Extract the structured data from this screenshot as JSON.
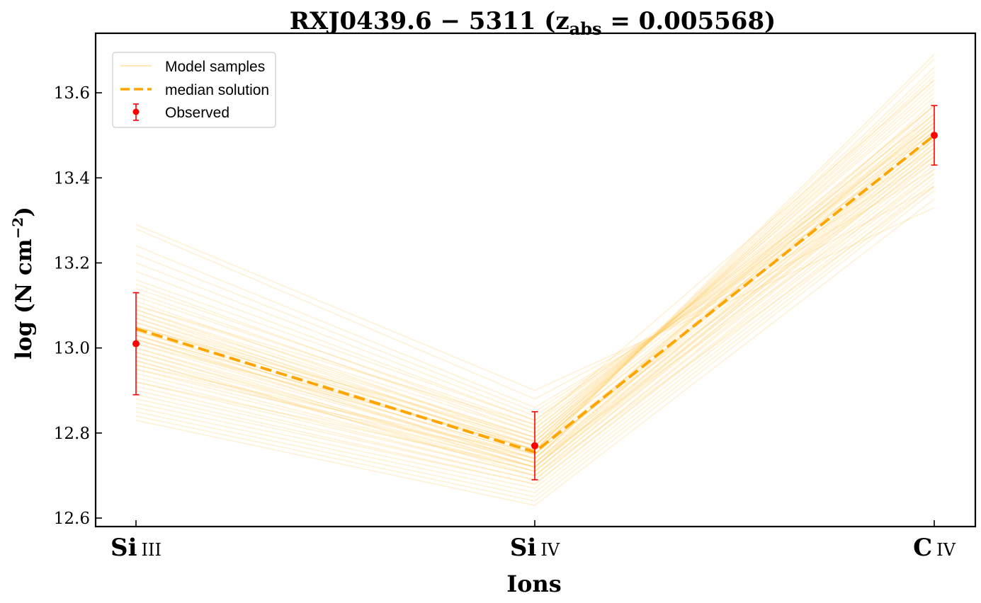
{
  "chart_data": {
    "type": "line",
    "title": {
      "main": "RXJ0439.6 − 5311 (z",
      "sub": "abs",
      "tail": " = 0.005568)"
    },
    "xlabel": "Ions",
    "ylabel": {
      "main": "log (N cm",
      "sup": "−2",
      "tail": ")"
    },
    "categories": [
      {
        "main": "Si",
        "sc": "III"
      },
      {
        "main": "Si",
        "sc": "IV"
      },
      {
        "main": "C",
        "sc": "IV"
      }
    ],
    "ylim": [
      12.58,
      13.74
    ],
    "yticks": [
      12.6,
      12.8,
      13.0,
      13.2,
      13.4,
      13.6
    ],
    "ytick_labels": [
      "12.6",
      "12.8",
      "13.0",
      "13.2",
      "13.4",
      "13.6"
    ],
    "legend": {
      "placement": "top-left",
      "entries": [
        "Model samples",
        "median solution",
        "Observed"
      ]
    },
    "series": [
      {
        "name": "median solution",
        "style": "dashed",
        "color": "#ffa500",
        "values": [
          13.045,
          12.755,
          13.5
        ]
      },
      {
        "name": "Observed",
        "style": "errorbar",
        "color": "#ff0000",
        "values": [
          13.01,
          12.77,
          13.5
        ],
        "errors": [
          0.12,
          0.08,
          0.07
        ]
      },
      {
        "name": "Model samples",
        "style": "thin",
        "color": "#ffcc66",
        "samples": [
          [
            13.29,
            12.9,
            13.33
          ],
          [
            13.28,
            12.88,
            13.38
          ],
          [
            13.24,
            12.86,
            13.42
          ],
          [
            13.22,
            12.85,
            13.45
          ],
          [
            13.2,
            12.84,
            13.47
          ],
          [
            13.16,
            12.83,
            13.49
          ],
          [
            13.14,
            12.82,
            13.51
          ],
          [
            13.12,
            12.81,
            13.53
          ],
          [
            13.1,
            12.8,
            13.55
          ],
          [
            13.09,
            12.79,
            13.57
          ],
          [
            13.08,
            12.79,
            13.59
          ],
          [
            13.07,
            12.78,
            13.6
          ],
          [
            13.06,
            12.78,
            13.61
          ],
          [
            13.05,
            12.77,
            13.62
          ],
          [
            13.05,
            12.77,
            13.63
          ],
          [
            13.04,
            12.76,
            13.64
          ],
          [
            13.03,
            12.76,
            13.65
          ],
          [
            13.03,
            12.76,
            13.66
          ],
          [
            13.02,
            12.75,
            13.68
          ],
          [
            13.02,
            12.75,
            13.69
          ],
          [
            13.01,
            12.74,
            13.58
          ],
          [
            13.0,
            12.74,
            13.56
          ],
          [
            12.99,
            12.73,
            13.54
          ],
          [
            12.98,
            12.73,
            13.52
          ],
          [
            12.97,
            12.72,
            13.5
          ],
          [
            12.96,
            12.72,
            13.49
          ],
          [
            12.95,
            12.71,
            13.48
          ],
          [
            12.94,
            12.71,
            13.47
          ],
          [
            12.93,
            12.7,
            13.46
          ],
          [
            12.92,
            12.7,
            13.45
          ],
          [
            12.91,
            12.69,
            13.44
          ],
          [
            12.9,
            12.69,
            13.43
          ],
          [
            12.89,
            12.68,
            13.42
          ],
          [
            12.88,
            12.68,
            13.41
          ],
          [
            12.87,
            12.67,
            13.4
          ],
          [
            12.86,
            12.66,
            13.39
          ],
          [
            12.85,
            12.65,
            13.38
          ],
          [
            12.84,
            12.64,
            13.37
          ],
          [
            12.83,
            12.63,
            13.35
          ],
          [
            13.11,
            12.78,
            13.53
          ],
          [
            13.09,
            12.77,
            13.52
          ],
          [
            13.07,
            12.76,
            13.51
          ],
          [
            13.06,
            12.75,
            13.5
          ],
          [
            13.04,
            12.74,
            13.49
          ],
          [
            13.02,
            12.73,
            13.48
          ],
          [
            13.0,
            12.72,
            13.47
          ],
          [
            12.99,
            12.72,
            13.46
          ],
          [
            12.97,
            12.71,
            13.45
          ],
          [
            13.13,
            12.8,
            13.57
          ],
          [
            13.15,
            12.81,
            13.55
          ],
          [
            13.18,
            12.83,
            13.52
          ],
          [
            12.95,
            12.74,
            13.57
          ],
          [
            12.92,
            12.72,
            13.55
          ],
          [
            13.05,
            12.79,
            13.54
          ],
          [
            13.01,
            12.77,
            13.53
          ],
          [
            12.96,
            12.75,
            13.51
          ],
          [
            13.08,
            12.76,
            13.44
          ],
          [
            13.03,
            12.73,
            13.41
          ],
          [
            12.98,
            12.7,
            13.38
          ],
          [
            13.1,
            12.82,
            13.63
          ]
        ]
      }
    ],
    "grid": false
  }
}
